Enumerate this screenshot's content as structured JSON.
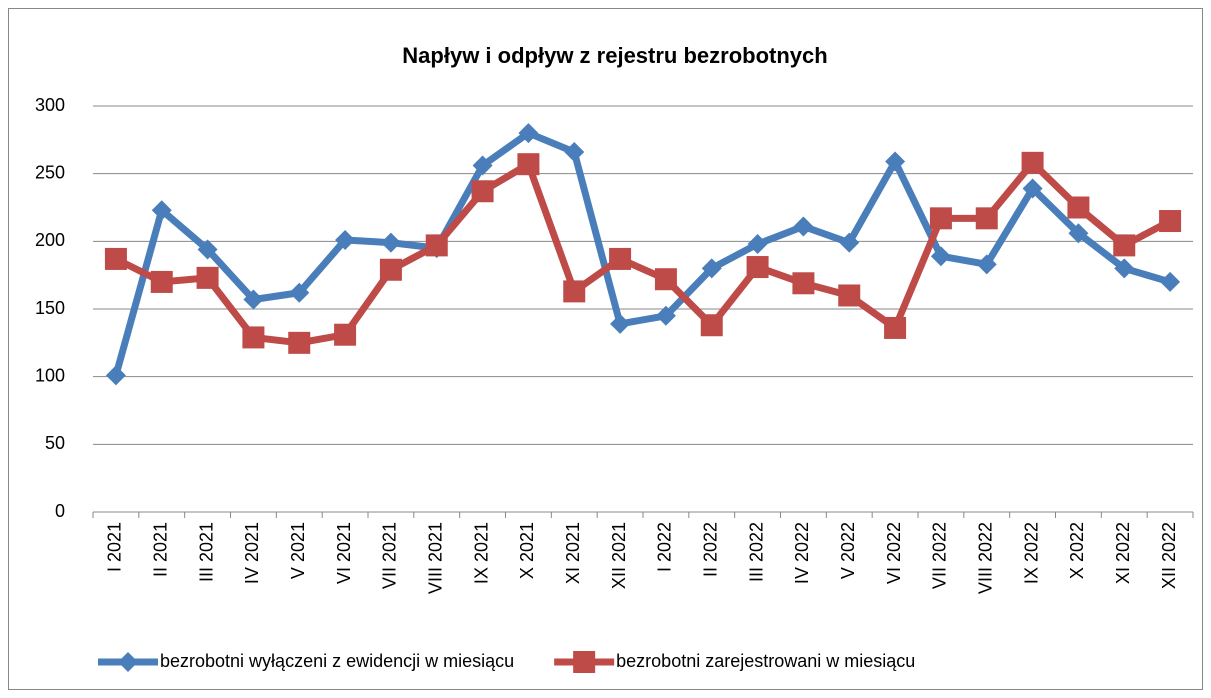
{
  "chart_data": {
    "type": "line",
    "title": "Napływ i odpływ z rejestru bezrobotnych",
    "categories": [
      "I 2021",
      "II 2021",
      "III 2021",
      "IV 2021",
      "V 2021",
      "VI 2021",
      "VII 2021",
      "VIII 2021",
      "IX 2021",
      "X 2021",
      "XI 2021",
      "XII 2021",
      "I 2022",
      "II 2022",
      "III 2022",
      "IV 2022",
      "V 2022",
      "VI 2022",
      "VII 2022",
      "VIII 2022",
      "IX 2022",
      "X 2022",
      "XI 2022",
      "XII 2022"
    ],
    "series": [
      {
        "name": "bezrobotni wyłączeni z ewidencji w miesiącu",
        "color": "#4a7ebb",
        "marker": "diamond",
        "values": [
          101,
          223,
          194,
          157,
          162,
          201,
          199,
          195,
          256,
          280,
          266,
          139,
          145,
          180,
          198,
          211,
          199,
          259,
          189,
          183,
          239,
          206,
          180,
          170
        ]
      },
      {
        "name": "bezrobotni zarejestrowani w miesiącu",
        "color": "#be4b48",
        "marker": "square",
        "values": [
          187,
          170,
          173,
          129,
          125,
          131,
          179,
          197,
          237,
          257,
          163,
          187,
          172,
          138,
          181,
          169,
          160,
          136,
          217,
          217,
          258,
          225,
          197,
          215
        ]
      }
    ],
    "ylim": [
      0,
      300
    ],
    "yticks": [
      0,
      50,
      100,
      150,
      200,
      250,
      300
    ],
    "grid": true,
    "legend": "bottom"
  }
}
